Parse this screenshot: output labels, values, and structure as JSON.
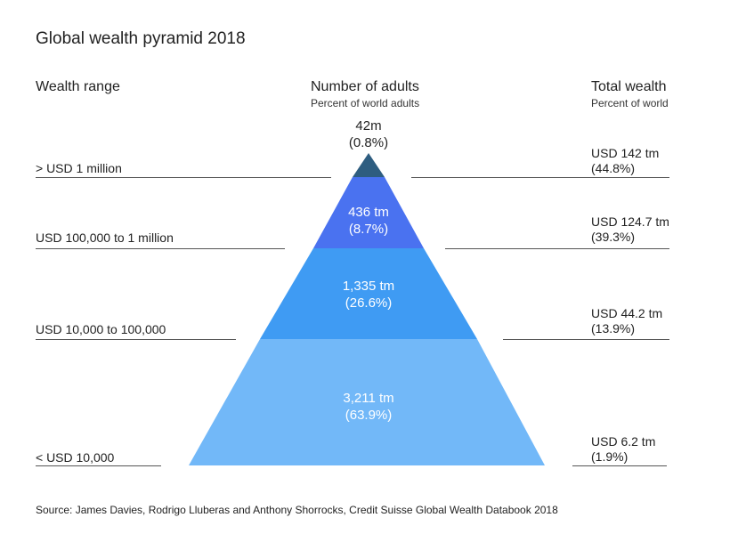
{
  "title": "Global wealth pyramid 2018",
  "headers": {
    "range": "Wealth range",
    "adults": "Number of adults",
    "adults_sub": "Percent of world adults",
    "wealth": "Total wealth",
    "wealth_sub": "Percent of world"
  },
  "tiers": [
    {
      "range": "> USD 1 million",
      "adults": "42m",
      "adults_pct": "(0.8%)",
      "wealth": "USD 142 tm",
      "wealth_pct": "(44.8%)",
      "color": "#2e5d80"
    },
    {
      "range": "USD 100,000 to 1 million",
      "adults": "436 tm",
      "adults_pct": "(8.7%)",
      "wealth": "USD 124.7 tm",
      "wealth_pct": "(39.3%)",
      "color": "#4a72f0"
    },
    {
      "range": "USD 10,000 to 100,000",
      "adults": "1,335 tm",
      "adults_pct": "(26.6%)",
      "wealth": "USD 44.2 tm",
      "wealth_pct": "(13.9%)",
      "color": "#3f9bf3"
    },
    {
      "range": "< USD 10,000",
      "adults": "3,211 tm",
      "adults_pct": "(63.9%)",
      "wealth": "USD 6.2 tm",
      "wealth_pct": "(1.9%)",
      "color": "#72b8f8"
    }
  ],
  "source": "Source: James Davies, Rodrigo Lluberas and Anthony Shorrocks, Credit Suisse Global Wealth Databook 2018"
}
